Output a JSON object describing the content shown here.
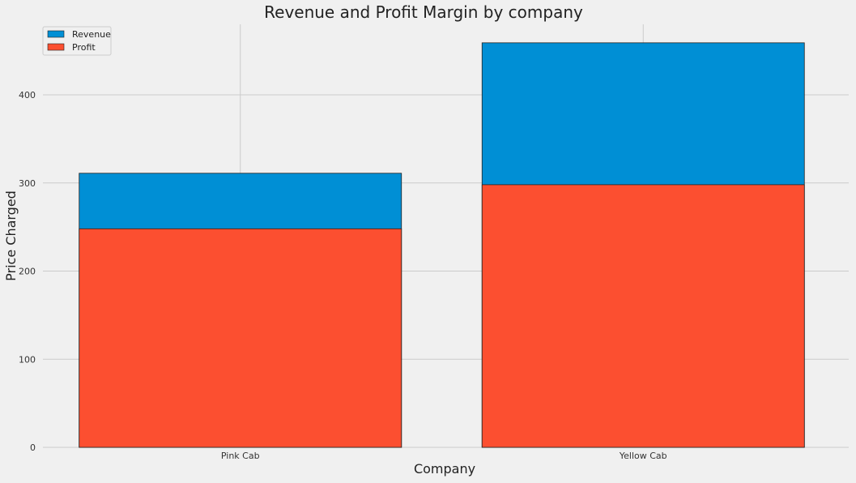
{
  "chart_data": {
    "type": "bar",
    "stacked": "overlay",
    "title": "Revenue and Profit Margin by company",
    "xlabel": "Company",
    "ylabel": "Price Charged",
    "categories": [
      "Pink Cab",
      "Yellow Cab"
    ],
    "series": [
      {
        "name": "Revenue",
        "values": [
          311,
          459
        ],
        "color": "#008fd5"
      },
      {
        "name": "Profit",
        "values": [
          248,
          298
        ],
        "color": "#fc4f30"
      }
    ],
    "ylim": [
      0,
      480
    ],
    "yticks": [
      0,
      100,
      200,
      300,
      400
    ],
    "grid": true,
    "legend_position": "top-left"
  }
}
